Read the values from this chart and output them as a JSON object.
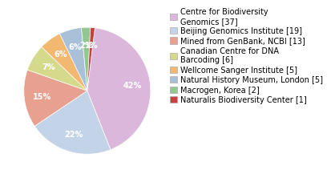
{
  "labels": [
    "Centre for Biodiversity\nGenomics [37]",
    "Beijing Genomics Institute [19]",
    "Mined from GenBank, NCBI [13]",
    "Canadian Centre for DNA\nBarcoding [6]",
    "Wellcome Sanger Institute [5]",
    "Natural History Museum, London [5]",
    "Macrogen, Korea [2]",
    "Naturalis Biodiversity Center [1]"
  ],
  "values": [
    37,
    19,
    13,
    6,
    5,
    5,
    2,
    1
  ],
  "colors": [
    "#dbb8db",
    "#c4d4e8",
    "#e8a090",
    "#d5d98c",
    "#f2b870",
    "#a8c0d8",
    "#90c890",
    "#c84040"
  ],
  "background_color": "#ffffff",
  "text_fontsize": 7.0,
  "legend_fontsize": 7.0,
  "startangle": 83
}
